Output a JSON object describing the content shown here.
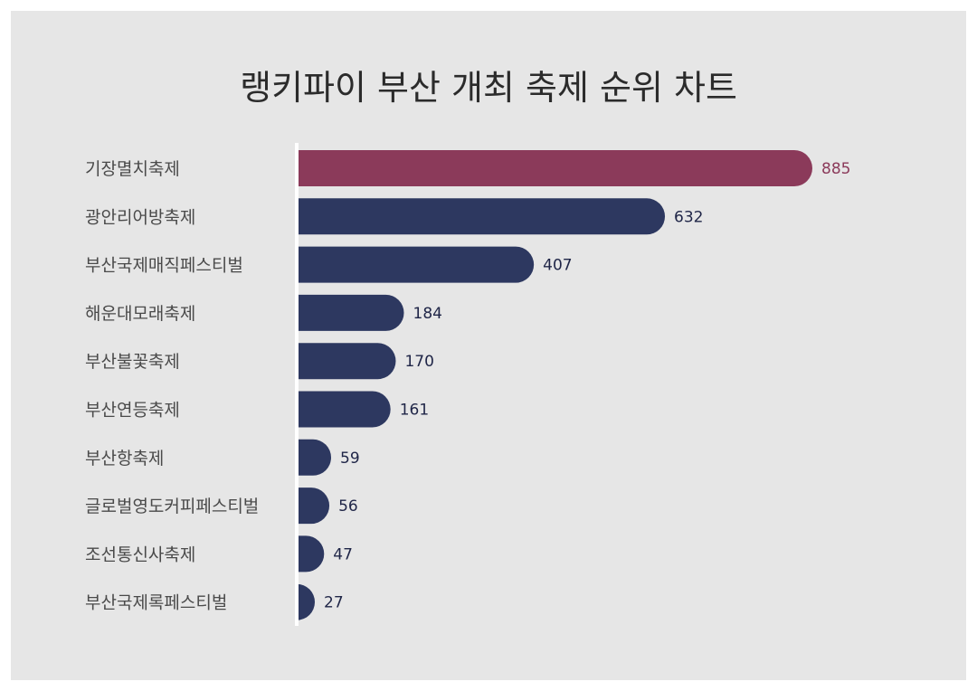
{
  "title": "랭키파이 부산 개최 축제 순위 차트",
  "colors": {
    "background": "#e6e6e6",
    "highlight": "#8b3a5a",
    "bar": "#2d3860",
    "value_text": "#1f2547",
    "highlight_text": "#8b3a5a"
  },
  "chart_data": {
    "type": "bar",
    "orientation": "horizontal",
    "title": "랭키파이 부산 개최 축제 순위 차트",
    "categories": [
      "기장멸치축제",
      "광안리어방축제",
      "부산국제매직페스티벌",
      "해운대모래축제",
      "부산불꽃축제",
      "부산연등축제",
      "부산항축제",
      "글로벌영도커피페스티벌",
      "조선통신사축제",
      "부산국제록페스티벌"
    ],
    "values": [
      885,
      632,
      407,
      184,
      170,
      161,
      59,
      56,
      47,
      27
    ],
    "value_labels": [
      "885",
      "632",
      "407",
      "184",
      "170",
      "161",
      "59",
      "56",
      "47",
      "27"
    ],
    "highlight_index": 0,
    "xlim": [
      0,
      885
    ],
    "grid": false,
    "legend": "none"
  }
}
